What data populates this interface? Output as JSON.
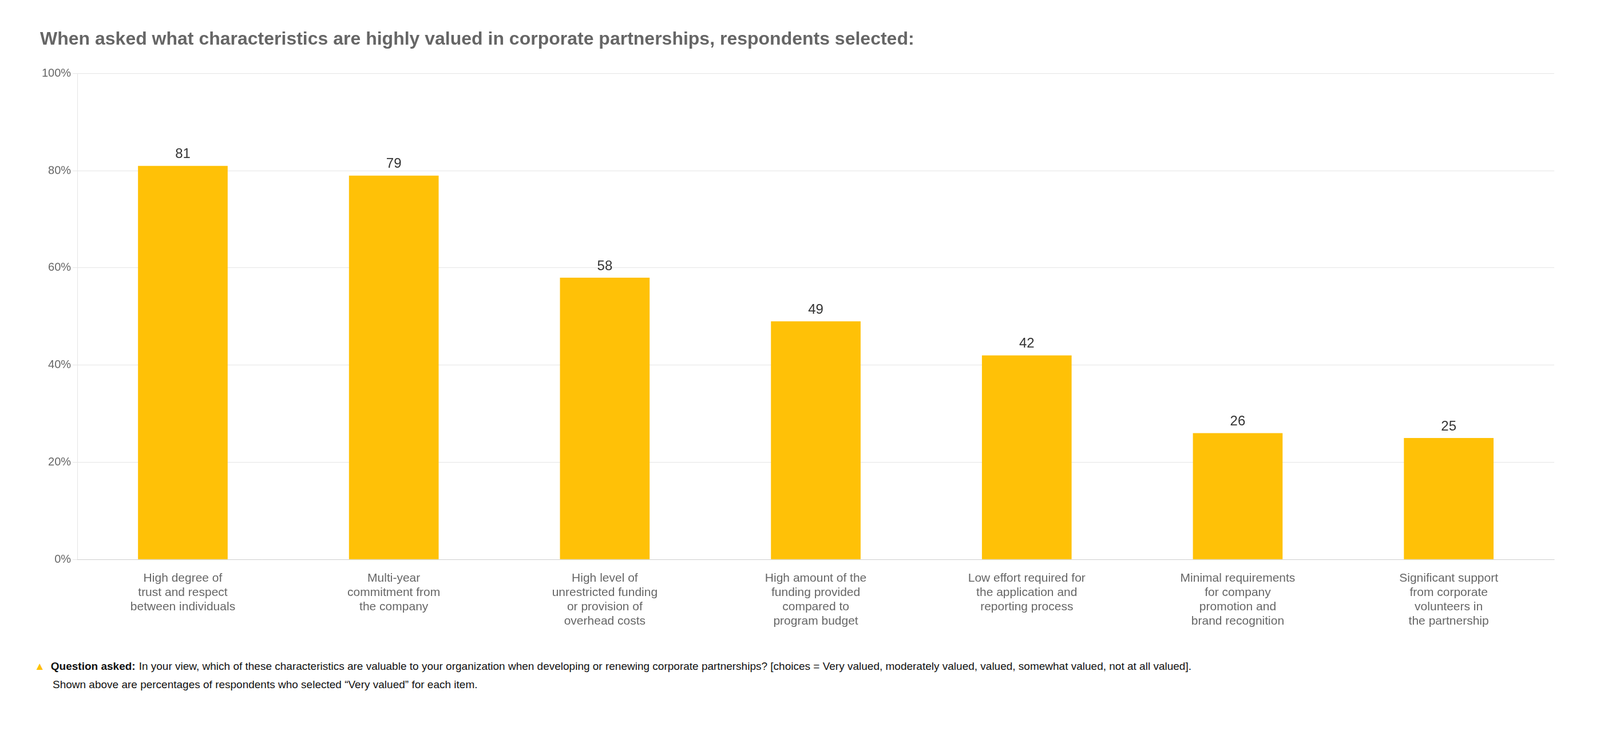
{
  "chart_data": {
    "type": "bar",
    "title": "When asked what characteristics are highly valued in corporate partnerships, respondents selected:",
    "categories": [
      "High degree of\ntrust and respect\nbetween individuals",
      "Multi-year\ncommitment from\nthe company",
      "High level of\nunrestricted funding\nor provision of\noverhead costs",
      "High amount of the\nfunding provided\ncompared to\nprogram budget",
      "Low effort required for\nthe application and\nreporting process",
      "Minimal requirements\nfor company\npromotion and\nbrand recognition",
      "Significant support\nfrom corporate\nvolunteers in\nthe partnership"
    ],
    "values": [
      81,
      79,
      58,
      49,
      42,
      26,
      25
    ],
    "color": "#FFC107",
    "ylim": [
      0,
      100
    ],
    "yticks": [
      {
        "value": 0,
        "label": "0%"
      },
      {
        "value": 20,
        "label": "20%"
      },
      {
        "value": 40,
        "label": "40%"
      },
      {
        "value": 60,
        "label": "60%"
      },
      {
        "value": 80,
        "label": "80%"
      },
      {
        "value": 100,
        "label": "100%"
      }
    ],
    "grid": true,
    "data_labels": true,
    "annotations": [
      "▲",
      "Question asked:",
      "In your view, which of these characteristics are valuable to your organization when developing or renewing corporate partnerships? [choices = Very valued, moderately valued, valued, somewhat valued, not at all valued].",
      "Shown above are percentages of respondents who selected “Very valued” for each item."
    ]
  }
}
